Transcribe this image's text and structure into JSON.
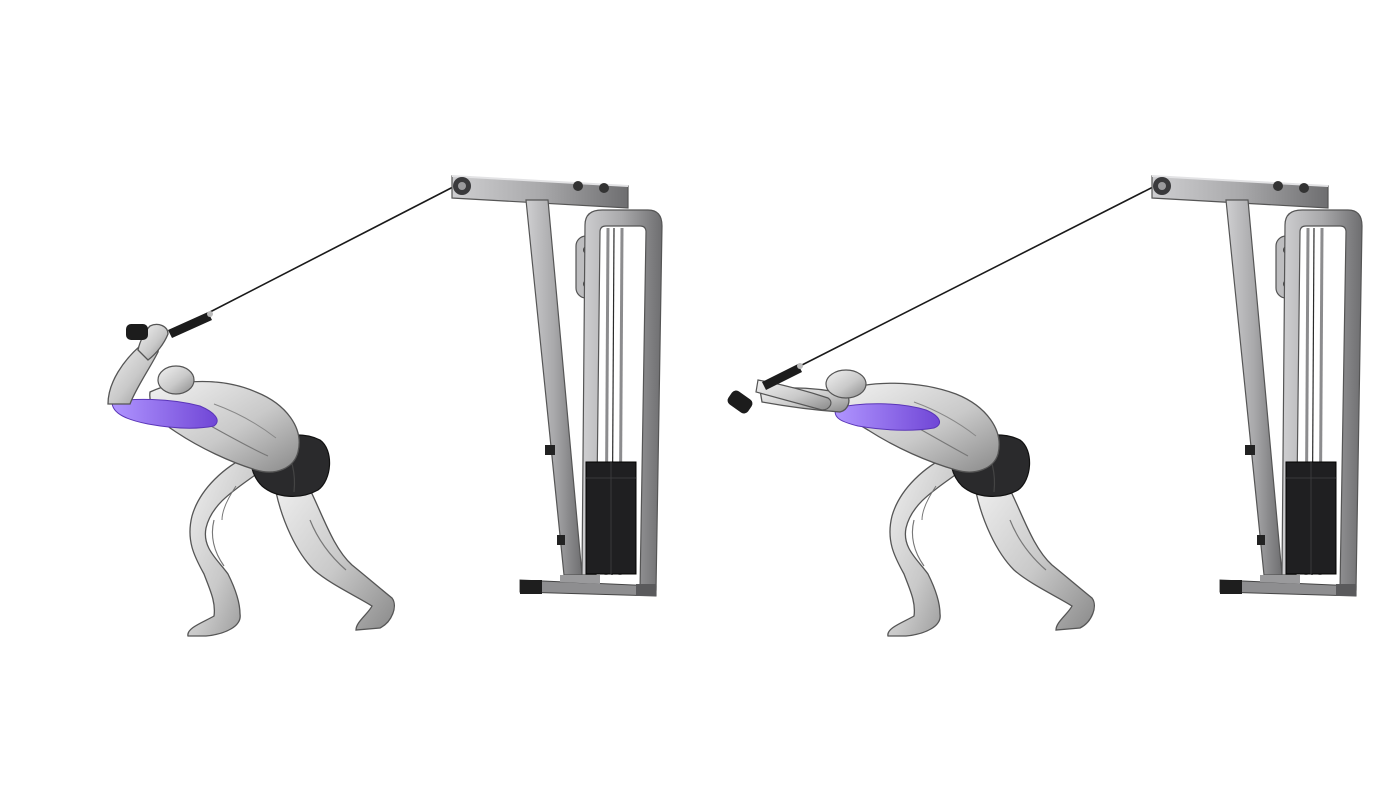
{
  "illustration": {
    "panels": [
      {
        "phase": "start",
        "highlight_color": "#8a63e8"
      },
      {
        "phase": "end",
        "highlight_color": "#8a63e8"
      }
    ],
    "colors": {
      "frame": "#a9a9ab",
      "frame_dark": "#6e6e70",
      "frame_light": "#cfcfd1",
      "weight_stack": "#1f1f21",
      "cable": "#1a1a1a",
      "skin": "#d9d9d9",
      "skin_shadow": "#8e8e8e",
      "shorts": "#2a2a2c",
      "highlight": "#8a63e8"
    }
  }
}
